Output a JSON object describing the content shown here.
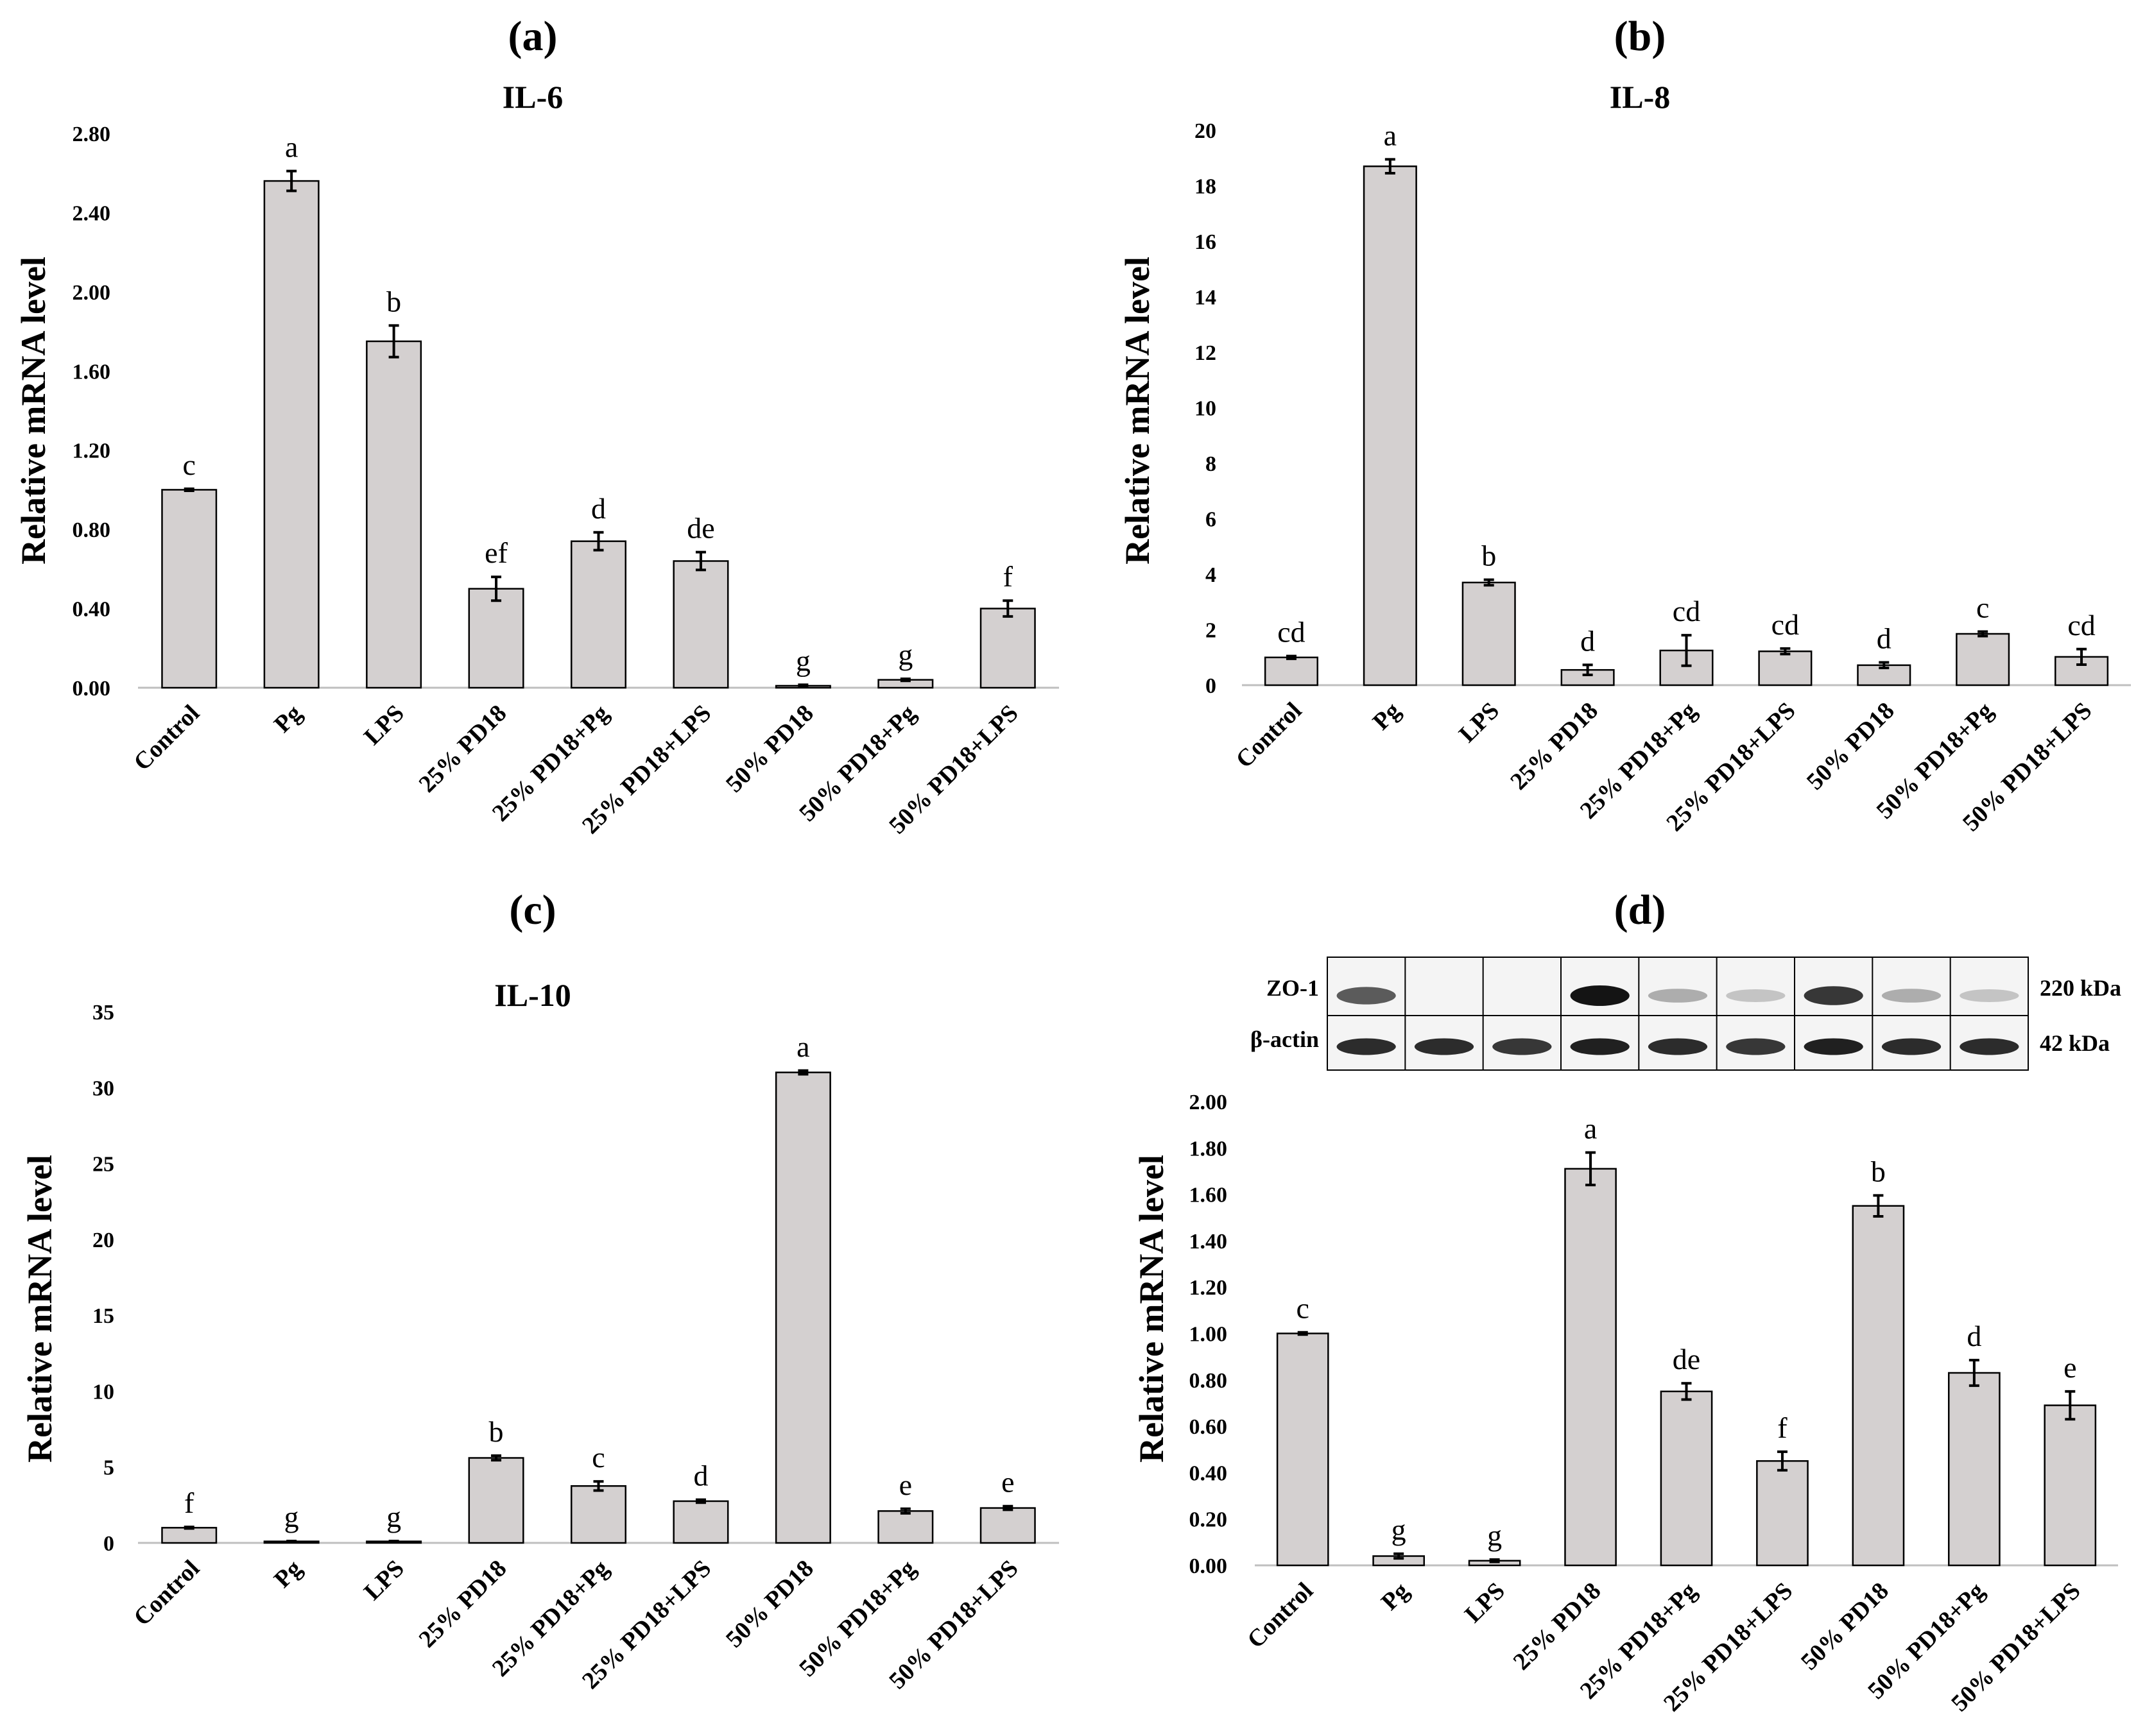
{
  "chart_data": [
    {
      "type": "bar",
      "panel_label": "(a)",
      "title": "IL-6",
      "ylabel": "Relative mRNA level",
      "xlabel": "",
      "ylim": [
        0,
        2.8
      ],
      "yticks": [
        "0.00",
        "0.40",
        "0.80",
        "1.20",
        "1.60",
        "2.00",
        "2.40",
        "2.80"
      ],
      "ytick_values": [
        0,
        0.4,
        0.8,
        1.2,
        1.6,
        2.0,
        2.4,
        2.8
      ],
      "categories": [
        "Control",
        "Pg",
        "LPS",
        "25% PD18",
        "25% PD18+Pg",
        "25% PD18+LPS",
        "50% PD18",
        "50% PD18+Pg",
        "50% PD18+LPS"
      ],
      "values": [
        1.0,
        2.56,
        1.75,
        0.5,
        0.74,
        0.64,
        0.01,
        0.04,
        0.4
      ],
      "errors": [
        0.005,
        0.05,
        0.08,
        0.06,
        0.045,
        0.045,
        0.005,
        0.005,
        0.04
      ],
      "letters": [
        "c",
        "a",
        "b",
        "ef",
        "d",
        "de",
        "g",
        "g",
        "f"
      ]
    },
    {
      "type": "bar",
      "panel_label": "(b)",
      "title": "IL-8",
      "ylabel": "Relative mRNA level",
      "xlabel": "",
      "ylim": [
        0,
        20
      ],
      "yticks": [
        "0",
        "2",
        "4",
        "6",
        "8",
        "10",
        "12",
        "14",
        "16",
        "18",
        "20"
      ],
      "ytick_values": [
        0,
        2,
        4,
        6,
        8,
        10,
        12,
        14,
        16,
        18,
        20
      ],
      "categories": [
        "Control",
        "Pg",
        "LPS",
        "25% PD18",
        "25% PD18+Pg",
        "25% PD18+LPS",
        "50% PD18",
        "50% PD18+Pg",
        "50% PD18+LPS"
      ],
      "values": [
        1.0,
        18.7,
        3.7,
        0.55,
        1.25,
        1.22,
        0.72,
        1.85,
        1.02
      ],
      "errors": [
        0.05,
        0.25,
        0.1,
        0.18,
        0.55,
        0.1,
        0.1,
        0.08,
        0.28
      ],
      "letters": [
        "cd",
        "a",
        "b",
        "d",
        "cd",
        "cd",
        "d",
        "c",
        "cd"
      ]
    },
    {
      "type": "bar",
      "panel_label": "(c)",
      "title": "IL-10",
      "ylabel": "Relative mRNA level",
      "xlabel": "",
      "ylim": [
        0,
        35
      ],
      "yticks": [
        "0",
        "5",
        "10",
        "15",
        "20",
        "25",
        "30",
        "35"
      ],
      "ytick_values": [
        0,
        5,
        10,
        15,
        20,
        25,
        30,
        35
      ],
      "categories": [
        "Control",
        "Pg",
        "LPS",
        "25% PD18",
        "25% PD18+Pg",
        "25% PD18+LPS",
        "50% PD18",
        "50% PD18+Pg",
        "50% PD18+LPS"
      ],
      "values": [
        1.0,
        0.1,
        0.1,
        5.6,
        3.75,
        2.75,
        31.0,
        2.1,
        2.3
      ],
      "errors": [
        0.05,
        0.02,
        0.02,
        0.15,
        0.3,
        0.1,
        0.12,
        0.15,
        0.12
      ],
      "letters": [
        "f",
        "g",
        "g",
        "b",
        "c",
        "d",
        "a",
        "e",
        "e"
      ]
    },
    {
      "type": "bar",
      "panel_label": "(d)",
      "title": "",
      "ylabel": "Relative mRNA level",
      "xlabel": "",
      "ylim": [
        0,
        2.0
      ],
      "yticks": [
        "0.00",
        "0.20",
        "0.40",
        "0.60",
        "0.80",
        "1.00",
        "1.20",
        "1.40",
        "1.60",
        "1.80",
        "2.00"
      ],
      "ytick_values": [
        0,
        0.2,
        0.4,
        0.6,
        0.8,
        1.0,
        1.2,
        1.4,
        1.6,
        1.8,
        2.0
      ],
      "categories": [
        "Control",
        "Pg",
        "LPS",
        "25% PD18",
        "25% PD18+Pg",
        "25% PD18+LPS",
        "50% PD18",
        "50% PD18+Pg",
        "50% PD18+LPS"
      ],
      "values": [
        1.0,
        0.04,
        0.02,
        1.71,
        0.75,
        0.45,
        1.55,
        0.83,
        0.69
      ],
      "errors": [
        0.005,
        0.01,
        0.005,
        0.07,
        0.035,
        0.04,
        0.045,
        0.055,
        0.06
      ],
      "letters": [
        "c",
        "g",
        "g",
        "a",
        "de",
        "f",
        "b",
        "d",
        "e"
      ],
      "blot": {
        "rows": [
          {
            "label": "ZO-1",
            "size": "220 kDa",
            "intensity": [
              0.7,
              0.0,
              0.0,
              1.0,
              0.35,
              0.25,
              0.85,
              0.35,
              0.25
            ]
          },
          {
            "label": "β-actin",
            "size": "42 kDa",
            "intensity": [
              0.9,
              0.9,
              0.85,
              0.95,
              0.9,
              0.85,
              0.95,
              0.9,
              0.9
            ]
          }
        ]
      }
    }
  ]
}
